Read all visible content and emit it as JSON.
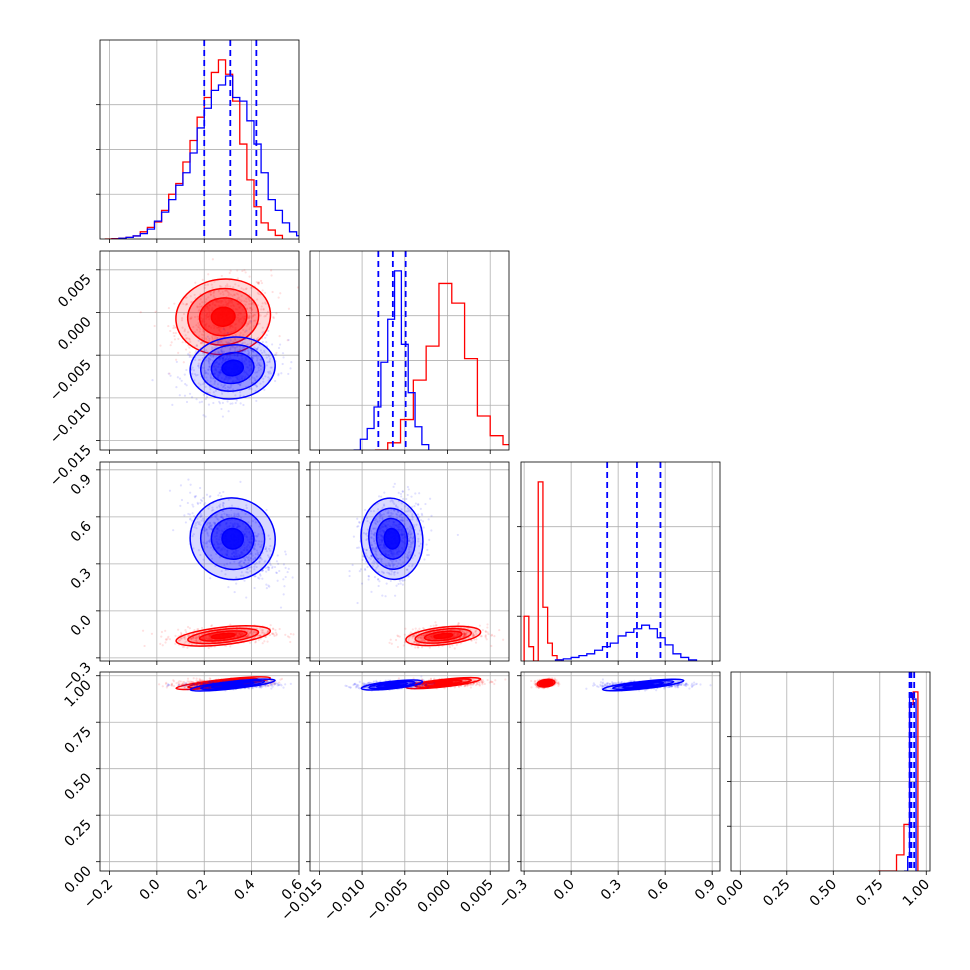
{
  "chart_data": {
    "type": "scatter",
    "subtype": "corner",
    "title": "",
    "grid": true,
    "colors": {
      "red": "#ff0000",
      "blue": "#0000ff",
      "grid": "#b0b0b0"
    },
    "parameters": [
      {
        "ticks": [
          -0.2,
          0.0,
          0.2,
          0.4,
          0.6
        ],
        "tick_labels": [
          "−0.2",
          "0.0",
          "0.2",
          "0.4",
          "0.6"
        ],
        "range": [
          -0.24,
          0.6
        ]
      },
      {
        "ticks": [
          -0.015,
          -0.01,
          -0.005,
          0.0,
          0.005
        ],
        "tick_labels": [
          "−0.015",
          "−0.010",
          "−0.005",
          "0.000",
          "0.005"
        ],
        "range": [
          -0.0161,
          0.0072
        ]
      },
      {
        "ticks": [
          -0.3,
          0.0,
          0.3,
          0.6,
          0.9
        ],
        "tick_labels": [
          "−0.3",
          "0.0",
          "0.3",
          "0.6",
          "0.9"
        ],
        "range": [
          -0.32,
          0.95
        ]
      },
      {
        "ticks": [
          0.0,
          0.25,
          0.5,
          0.75,
          1.0
        ],
        "tick_labels": [
          "0.00",
          "0.25",
          "0.50",
          "0.75",
          "1.00"
        ],
        "range": [
          -0.05,
          1.02
        ]
      }
    ],
    "series": [
      {
        "color": "#ff0000",
        "mean": [
          0.28,
          -0.0005,
          -0.16,
          0.96
        ],
        "sd": [
          0.1,
          0.0022,
          0.028,
          0.01
        ],
        "hist": [
          [
            [
              -0.22,
              0
            ],
            [
              -0.19,
              0.002
            ],
            [
              -0.16,
              0.004
            ],
            [
              -0.13,
              0.009
            ],
            [
              -0.1,
              0.017
            ],
            [
              -0.07,
              0.04
            ],
            [
              -0.04,
              0.065
            ],
            [
              -0.01,
              0.095
            ],
            [
              0.02,
              0.16
            ],
            [
              0.05,
              0.25
            ],
            [
              0.08,
              0.31
            ],
            [
              0.11,
              0.43
            ],
            [
              0.14,
              0.55
            ],
            [
              0.17,
              0.68
            ],
            [
              0.2,
              0.79
            ],
            [
              0.23,
              0.93
            ],
            [
              0.26,
              1.0
            ],
            [
              0.29,
              0.92
            ],
            [
              0.32,
              0.77
            ],
            [
              0.35,
              0.53
            ],
            [
              0.38,
              0.33
            ],
            [
              0.41,
              0.18
            ],
            [
              0.44,
              0.09
            ],
            [
              0.47,
              0.05
            ],
            [
              0.5,
              0.02
            ],
            [
              0.53,
              0
            ]
          ],
          [
            [
              -0.0085,
              0
            ],
            [
              -0.007,
              0.04
            ],
            [
              -0.0055,
              0.17
            ],
            [
              -0.004,
              0.39
            ],
            [
              -0.0025,
              0.58
            ],
            [
              -0.001,
              0.93
            ],
            [
              0.0005,
              0.82
            ],
            [
              0.002,
              0.51
            ],
            [
              0.0035,
              0.19
            ],
            [
              0.005,
              0.08
            ],
            [
              0.0065,
              0.03
            ],
            [
              0.008,
              0
            ]
          ],
          [
            [
              -0.3,
              0.25
            ],
            [
              -0.27,
              0.08
            ],
            [
              -0.24,
              0.0
            ],
            [
              -0.21,
              1.0
            ],
            [
              -0.18,
              0.3
            ],
            [
              -0.15,
              0.1
            ],
            [
              -0.12,
              0.03
            ],
            [
              -0.09,
              0.006
            ],
            [
              -0.06,
              0.0
            ]
          ],
          [
            [
              0.74,
              0
            ],
            [
              0.84,
              0.09
            ],
            [
              0.88,
              0.26
            ],
            [
              0.91,
              0.93
            ],
            [
              0.93,
              1.0
            ],
            [
              0.955,
              0.0
            ]
          ]
        ]
      },
      {
        "color": "#0000ff",
        "mean": [
          0.32,
          -0.0065,
          0.46,
          0.95
        ],
        "sd": [
          0.09,
          0.0018,
          0.13,
          0.01
        ],
        "hist": [
          [
            [
              -0.19,
              0
            ],
            [
              -0.16,
              0.004
            ],
            [
              -0.13,
              0.009
            ],
            [
              -0.1,
              0.017
            ],
            [
              -0.07,
              0.03
            ],
            [
              -0.04,
              0.055
            ],
            [
              -0.01,
              0.1
            ],
            [
              0.02,
              0.15
            ],
            [
              0.05,
              0.22
            ],
            [
              0.08,
              0.3
            ],
            [
              0.11,
              0.37
            ],
            [
              0.14,
              0.48
            ],
            [
              0.17,
              0.62
            ],
            [
              0.2,
              0.73
            ],
            [
              0.23,
              0.83
            ],
            [
              0.26,
              0.86
            ],
            [
              0.29,
              0.91
            ],
            [
              0.32,
              0.79
            ],
            [
              0.35,
              0.77
            ],
            [
              0.38,
              0.66
            ],
            [
              0.41,
              0.53
            ],
            [
              0.44,
              0.37
            ],
            [
              0.47,
              0.22
            ],
            [
              0.5,
              0.16
            ],
            [
              0.53,
              0.09
            ],
            [
              0.56,
              0.04
            ],
            [
              0.59,
              0.018
            ],
            [
              0.62,
              0
            ]
          ],
          [
            [
              -0.011,
              0
            ],
            [
              -0.0102,
              0.06
            ],
            [
              -0.0094,
              0.12
            ],
            [
              -0.0086,
              0.24
            ],
            [
              -0.0078,
              0.49
            ],
            [
              -0.007,
              0.73
            ],
            [
              -0.0062,
              1.0
            ],
            [
              -0.0054,
              0.59
            ],
            [
              -0.0046,
              0.32
            ],
            [
              -0.0038,
              0.13
            ],
            [
              -0.003,
              0.03
            ],
            [
              -0.0022,
              0
            ]
          ],
          [
            [
              -0.1,
              0.006
            ],
            [
              -0.05,
              0.012
            ],
            [
              0.0,
              0.02
            ],
            [
              0.05,
              0.03
            ],
            [
              0.1,
              0.04
            ],
            [
              0.15,
              0.06
            ],
            [
              0.2,
              0.08
            ],
            [
              0.25,
              0.1
            ],
            [
              0.3,
              0.14
            ],
            [
              0.35,
              0.16
            ],
            [
              0.4,
              0.18
            ],
            [
              0.45,
              0.2
            ],
            [
              0.5,
              0.18
            ],
            [
              0.55,
              0.13
            ],
            [
              0.6,
              0.09
            ],
            [
              0.65,
              0.04
            ],
            [
              0.7,
              0.02
            ],
            [
              0.75,
              0.006
            ],
            [
              0.8,
              0.0
            ]
          ],
          [
            [
              0.88,
              0
            ],
            [
              0.9,
              0.08
            ],
            [
              0.91,
              0.99
            ],
            [
              0.925,
              0.96
            ],
            [
              0.945,
              0.0
            ]
          ]
        ],
        "quantiles": [
          [
            0.2,
            0.31,
            0.42
          ],
          [
            -0.0081,
            -0.0064,
            -0.0049
          ],
          [
            0.23,
            0.42,
            0.57
          ],
          [
            0.91,
            0.92,
            0.935
          ]
        ]
      }
    ]
  }
}
